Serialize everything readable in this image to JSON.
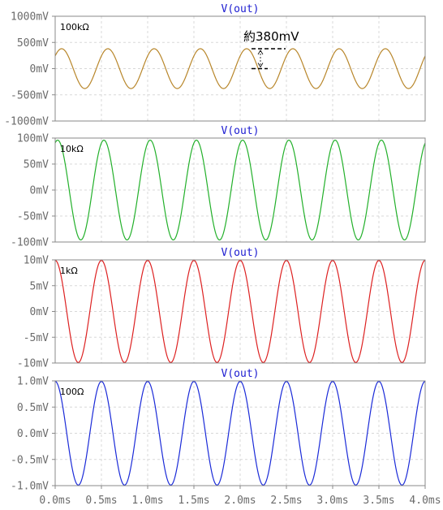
{
  "chart_data": [
    {
      "type": "line",
      "title": "V(out)",
      "panel_label": "100kΩ",
      "color": "#b8862a",
      "amplitude": 380,
      "unit": "mV",
      "ylim": [
        -1000,
        1000
      ],
      "yticks": [
        1000,
        500,
        0,
        -500,
        -1000
      ],
      "ytick_labels": [
        "1000mV",
        "500mV",
        "0mV",
        "-500mV",
        "-1000mV"
      ],
      "period_ms": 0.5,
      "phase_ms": 0.055,
      "series": [
        {
          "values": "sine, amplitude ≈ 380 mV, period 0.5 ms"
        }
      ],
      "annotation": "約380mV"
    },
    {
      "type": "line",
      "title": "V(out)",
      "panel_label": "10kΩ",
      "color": "#22b02a",
      "amplitude": 96,
      "unit": "mV",
      "ylim": [
        -100,
        100
      ],
      "yticks": [
        100,
        50,
        0,
        -50,
        -100
      ],
      "ytick_labels": [
        "100mV",
        "50mV",
        "0mV",
        "-50mV",
        "-100mV"
      ],
      "period_ms": 0.5,
      "phase_ms": 0.098,
      "series": [
        {
          "values": "sine, amplitude ≈ 96 mV, period 0.5 ms"
        }
      ]
    },
    {
      "type": "line",
      "title": "V(out)",
      "panel_label": "1kΩ",
      "color": "#dd2020",
      "amplitude": 9.9,
      "unit": "mV",
      "ylim": [
        -10,
        10
      ],
      "yticks": [
        10,
        5,
        0,
        -5,
        -10
      ],
      "ytick_labels": [
        "10mV",
        "5mV",
        "0mV",
        "-5mV",
        "-10mV"
      ],
      "period_ms": 0.5,
      "phase_ms": 0.125,
      "series": [
        {
          "values": "sine, amplitude ≈ 9.9 mV, period 0.5 ms"
        }
      ]
    },
    {
      "type": "line",
      "title": "V(out)",
      "panel_label": "100Ω",
      "color": "#1a2ad8",
      "amplitude": 0.99,
      "unit": "mV",
      "ylim": [
        -1,
        1
      ],
      "yticks": [
        1,
        0.5,
        0,
        -0.5,
        -1
      ],
      "ytick_labels": [
        "1.0mV",
        "0.5mV",
        "0.0mV",
        "-0.5mV",
        "-1.0mV"
      ],
      "period_ms": 0.5,
      "phase_ms": 0.125,
      "series": [
        {
          "values": "sine, amplitude ≈ 0.99 mV, period 0.5 ms"
        }
      ]
    }
  ],
  "x_axis": {
    "xlim": [
      0,
      4
    ],
    "ticks": [
      0,
      0.5,
      1,
      1.5,
      2,
      2.5,
      3,
      3.5,
      4
    ],
    "tick_labels": [
      "0.0ms",
      "0.5ms",
      "1.0ms",
      "1.5ms",
      "2.0ms",
      "2.5ms",
      "3.0ms",
      "3.5ms",
      "4.0ms"
    ]
  },
  "grid": true
}
